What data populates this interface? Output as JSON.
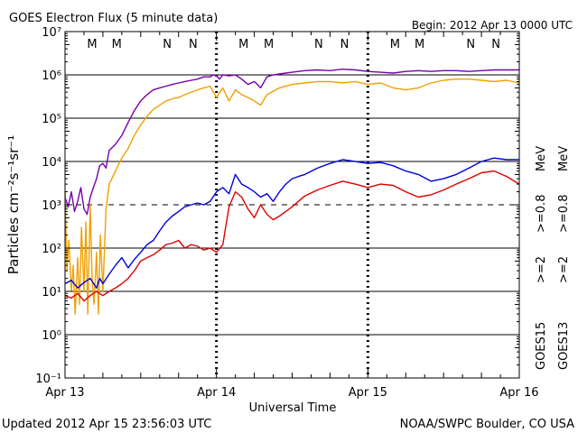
{
  "title": "GOES Electron Flux (5 minute data)",
  "begin": "Begin: 2012 Apr 13 0000 UTC",
  "updated": "Updated 2012 Apr 15 23:56:03 UTC",
  "credit": "NOAA/SWPC Boulder, CO USA",
  "colors": {
    "red": "#dd0000",
    "blue": "#0000dd",
    "purple": "#7700aa",
    "orange": "#f0a000"
  },
  "chart_data": {
    "type": "line",
    "xlabel": "Universal Time",
    "ylabel": "Particles cm⁻²s⁻¹sr⁻¹",
    "y_scale": "log",
    "ylim": [
      0.1,
      10000000
    ],
    "xlim": [
      0,
      72
    ],
    "x_unit": "hours since 2012 Apr 13 0000 UTC",
    "x_ticks": [
      {
        "x": 0,
        "label": "Apr 13"
      },
      {
        "x": 24,
        "label": "Apr 14"
      },
      {
        "x": 48,
        "label": "Apr 15"
      },
      {
        "x": 72,
        "label": "Apr 16"
      }
    ],
    "y_ticks": [
      {
        "y": 0.1,
        "label": "10⁻¹"
      },
      {
        "y": 1,
        "label": "10⁰"
      },
      {
        "y": 10,
        "label": "10¹"
      },
      {
        "y": 100,
        "label": "10²"
      },
      {
        "y": 1000,
        "label": "10³"
      },
      {
        "y": 10000,
        "label": "10⁴"
      },
      {
        "y": 100000,
        "label": "10⁵"
      },
      {
        "y": 1000000,
        "label": "10⁶"
      },
      {
        "y": 10000000,
        "label": "10⁷"
      }
    ],
    "hlines": [
      {
        "y": 1,
        "style": "solid"
      },
      {
        "y": 10,
        "style": "solid"
      },
      {
        "y": 100,
        "style": "solid"
      },
      {
        "y": 1000,
        "style": "dashed"
      },
      {
        "y": 10000,
        "style": "solid"
      },
      {
        "y": 100000,
        "style": "solid"
      },
      {
        "y": 1000000,
        "style": "solid"
      }
    ],
    "markers": [
      {
        "x": 4.3,
        "label": "M",
        "color": "#dd0000"
      },
      {
        "x": 8.2,
        "label": "M",
        "color": "#0000dd"
      },
      {
        "x": 16.2,
        "label": "N",
        "color": "#dd0000"
      },
      {
        "x": 20.3,
        "label": "N",
        "color": "#0000dd"
      },
      {
        "x": 28.3,
        "label": "M",
        "color": "#dd0000"
      },
      {
        "x": 32.3,
        "label": "M",
        "color": "#0000dd"
      },
      {
        "x": 40.2,
        "label": "N",
        "color": "#dd0000"
      },
      {
        "x": 44.3,
        "label": "N",
        "color": "#0000dd"
      },
      {
        "x": 52.3,
        "label": "M",
        "color": "#dd0000"
      },
      {
        "x": 56.2,
        "label": "M",
        "color": "#0000dd"
      },
      {
        "x": 64.3,
        "label": "N",
        "color": "#dd0000"
      },
      {
        "x": 68.3,
        "label": "N",
        "color": "#0000dd"
      }
    ],
    "legend": {
      "placement": "right",
      "goes15": "GOES15",
      "goes13": "GOES13",
      "entries": [
        {
          "label": ">=2",
          "color": "#0000dd"
        },
        {
          "label": ">=0.8",
          "color": "#7700aa"
        },
        {
          "label": ">=2",
          "color": "#dd0000"
        },
        {
          "label": ">=0.8",
          "color": "#f0a000"
        }
      ],
      "unit": "MeV"
    },
    "series": [
      {
        "name": "GOES15 >=0.8 MeV",
        "color": "#7700aa",
        "x": [
          0,
          0.5,
          1,
          1.5,
          2,
          2.5,
          3,
          3.5,
          4,
          4.5,
          5,
          5.5,
          6,
          6.5,
          7,
          8,
          9,
          10,
          11,
          12,
          13,
          14,
          15,
          16,
          17,
          18,
          19,
          20,
          21,
          22,
          23,
          23.5,
          24,
          24.5,
          25,
          26,
          27,
          28,
          29,
          30,
          31,
          32,
          33,
          34,
          35,
          36,
          38,
          40,
          42,
          44,
          46,
          48,
          50,
          52,
          54,
          56,
          58,
          60,
          62,
          64,
          66,
          68,
          70,
          72
        ],
        "y": [
          1500,
          900,
          2000,
          700,
          1200,
          2500,
          800,
          600,
          1500,
          2500,
          4000,
          8000,
          9000,
          7000,
          18000,
          25000,
          40000,
          80000,
          150000,
          250000,
          350000,
          450000,
          500000,
          550000,
          600000,
          650000,
          700000,
          750000,
          800000,
          900000,
          900000,
          1000000,
          950000,
          800000,
          1000000,
          950000,
          1000000,
          800000,
          600000,
          700000,
          500000,
          900000,
          1000000,
          1050000,
          1100000,
          1150000,
          1250000,
          1300000,
          1250000,
          1350000,
          1300000,
          1200000,
          1150000,
          1100000,
          1200000,
          1250000,
          1200000,
          1250000,
          1250000,
          1200000,
          1250000,
          1300000,
          1300000,
          1300000
        ]
      },
      {
        "name": "GOES13 >=0.8 MeV",
        "color": "#f0a000",
        "x": [
          0,
          0.3,
          0.6,
          1,
          1.3,
          1.6,
          2,
          2.3,
          2.6,
          3,
          3.3,
          3.6,
          4,
          4.3,
          4.6,
          5,
          5.3,
          5.6,
          6,
          6.5,
          7,
          8,
          9,
          10,
          11,
          12,
          13,
          14,
          15,
          16,
          17,
          18,
          19,
          20,
          21,
          22,
          23,
          24,
          25,
          26,
          27,
          28,
          29,
          30,
          31,
          32,
          34,
          36,
          38,
          40,
          42,
          44,
          46,
          48,
          50,
          52,
          54,
          56,
          58,
          60,
          62,
          64,
          66,
          68,
          70,
          72
        ],
        "y": [
          2000,
          30,
          150,
          10,
          40,
          3,
          60,
          5,
          300,
          10,
          400,
          3,
          1000,
          20,
          5,
          80,
          3,
          200,
          10,
          800,
          3000,
          6000,
          12000,
          20000,
          40000,
          70000,
          110000,
          160000,
          200000,
          250000,
          280000,
          300000,
          350000,
          400000,
          450000,
          500000,
          550000,
          300000,
          500000,
          250000,
          450000,
          350000,
          300000,
          250000,
          200000,
          350000,
          500000,
          600000,
          650000,
          700000,
          700000,
          650000,
          700000,
          600000,
          650000,
          500000,
          450000,
          500000,
          650000,
          750000,
          800000,
          800000,
          750000,
          700000,
          750000,
          650000
        ]
      },
      {
        "name": "GOES15 >=2 MeV",
        "color": "#0000dd",
        "x": [
          0,
          1,
          2,
          3,
          4,
          5,
          5.5,
          6,
          7,
          8,
          9,
          10,
          11,
          12,
          13,
          14,
          15,
          16,
          17,
          18,
          19,
          20,
          21,
          22,
          23,
          24,
          25,
          26,
          27,
          28,
          29,
          30,
          31,
          32,
          33,
          34,
          35,
          36,
          37,
          38,
          40,
          42,
          44,
          46,
          48,
          50,
          52,
          54,
          56,
          58,
          60,
          62,
          64,
          66,
          68,
          70,
          72
        ],
        "y": [
          15,
          18,
          12,
          16,
          20,
          12,
          20,
          15,
          25,
          40,
          60,
          35,
          55,
          80,
          120,
          150,
          250,
          400,
          550,
          700,
          900,
          1000,
          1100,
          1000,
          1200,
          2000,
          2500,
          1800,
          5000,
          3000,
          2500,
          2000,
          1500,
          1800,
          1200,
          2000,
          3000,
          4000,
          4500,
          5000,
          7000,
          9000,
          11000,
          10000,
          9000,
          9500,
          8000,
          6000,
          5000,
          3500,
          4000,
          5000,
          7000,
          10000,
          12000,
          11000,
          11000
        ]
      },
      {
        "name": "GOES13 >=2 MeV",
        "color": "#dd0000",
        "x": [
          0,
          1,
          2,
          3,
          4,
          4.5,
          5,
          6,
          7,
          8,
          9,
          10,
          11,
          12,
          13,
          14,
          15,
          16,
          17,
          18,
          19,
          20,
          21,
          22,
          23,
          24,
          25,
          26,
          27,
          28,
          29,
          30,
          31,
          32,
          33,
          34,
          35,
          36,
          37,
          38,
          40,
          42,
          44,
          46,
          48,
          50,
          52,
          54,
          56,
          58,
          60,
          62,
          64,
          66,
          68,
          70,
          72
        ],
        "y": [
          8,
          7,
          9,
          6,
          8,
          9,
          10,
          8,
          10,
          12,
          15,
          20,
          30,
          50,
          60,
          70,
          90,
          120,
          130,
          150,
          100,
          120,
          110,
          90,
          100,
          80,
          120,
          900,
          2000,
          1500,
          800,
          500,
          1000,
          600,
          450,
          550,
          700,
          900,
          1200,
          1600,
          2200,
          2800,
          3500,
          3000,
          2500,
          3000,
          2800,
          2000,
          1500,
          1700,
          2200,
          3000,
          4000,
          5500,
          6000,
          4500,
          3000
        ]
      }
    ]
  }
}
